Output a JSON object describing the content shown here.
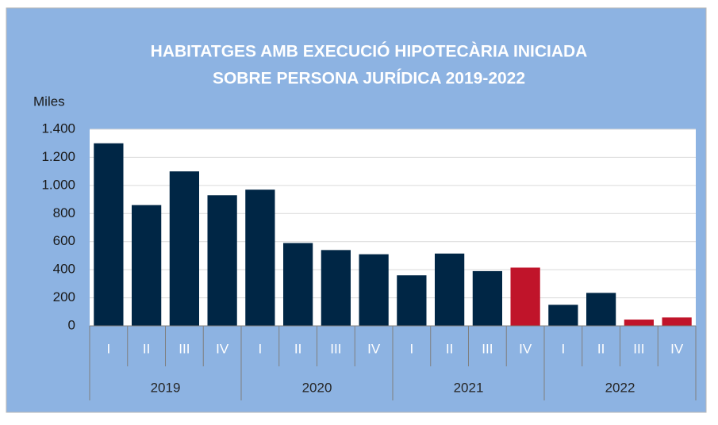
{
  "chart_data": {
    "type": "bar",
    "title": [
      "HABITATGES AMB EXECUCIÓ HIPOTECÀRIA INICIADA",
      "SOBRE PERSONA JURÍDICA 2019-2022"
    ],
    "y_label": "Miles",
    "categories": [
      "I",
      "II",
      "III",
      "IV",
      "I",
      "II",
      "III",
      "IV",
      "I",
      "II",
      "III",
      "IV",
      "I",
      "II",
      "III",
      "IV"
    ],
    "groups": [
      "2019",
      "2020",
      "2021",
      "2022"
    ],
    "values": [
      1300,
      860,
      1100,
      930,
      970,
      590,
      540,
      510,
      360,
      515,
      390,
      415,
      150,
      235,
      45,
      60
    ],
    "colors": [
      "#002645",
      "#002645",
      "#002645",
      "#002645",
      "#002645",
      "#002645",
      "#002645",
      "#002645",
      "#002645",
      "#002645",
      "#002645",
      "#c0142a",
      "#002645",
      "#002645",
      "#c0142a",
      "#c0142a"
    ],
    "ylim": [
      0,
      1400
    ],
    "yticks": [
      0,
      200,
      400,
      600,
      800,
      {
        "value": 1000,
        "label": "1.000"
      },
      {
        "value": 1200,
        "label": "1.200"
      },
      {
        "value": 1400,
        "label": "1.400"
      }
    ],
    "grid": true
  }
}
